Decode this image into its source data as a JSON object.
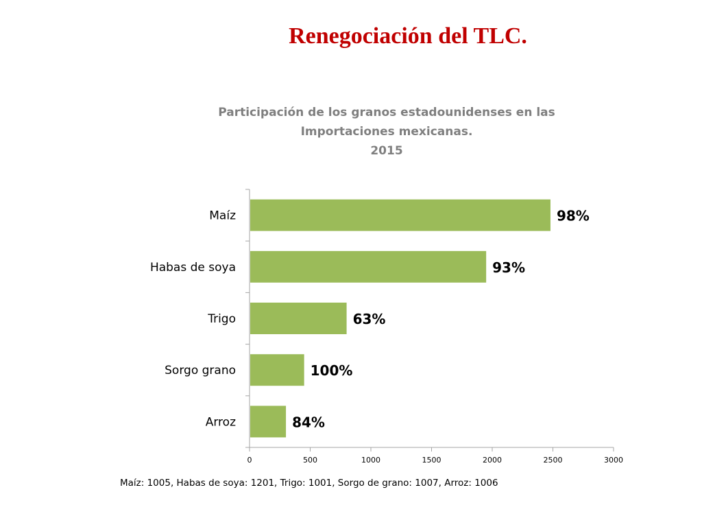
{
  "slide_title": "Renegociación del TLC.",
  "chart_data": {
    "type": "bar",
    "orientation": "horizontal",
    "title_lines": [
      "Participación de los granos estadounidenses en las",
      "Importaciones mexicanas.",
      "2015"
    ],
    "categories": [
      "Maíz",
      "Habas de soya",
      "Trigo",
      "Sorgo grano",
      "Arroz"
    ],
    "values": [
      2480,
      1950,
      800,
      450,
      300
    ],
    "data_labels": [
      "98%",
      "93%",
      "63%",
      "100%",
      "84%"
    ],
    "xlim": [
      0,
      3000
    ],
    "xticks": [
      "0",
      "500",
      "1000",
      "1500",
      "2000",
      "2500",
      "3000"
    ],
    "grid": false,
    "bar_color": "#9bbb59"
  },
  "footnote": "Maíz: 1005, Habas de soya: 1201, Trigo:  1001, Sorgo de grano: 1007, Arroz: 1006"
}
